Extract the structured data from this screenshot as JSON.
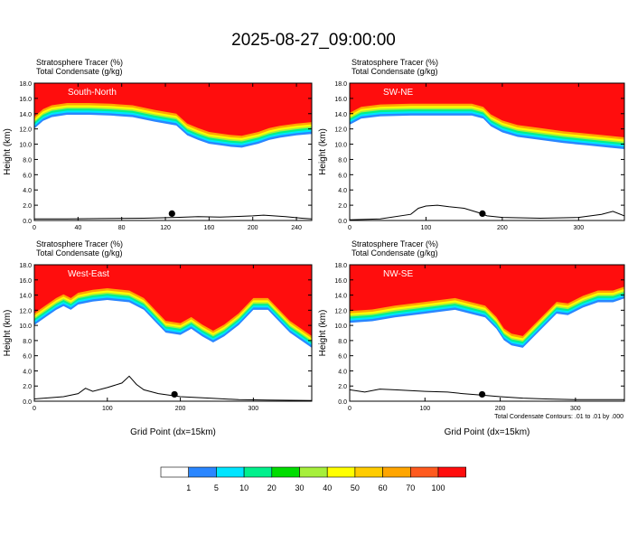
{
  "title": "2025-08-27_09:00:00",
  "colorbar": {
    "colors": [
      "#ffffff",
      "#2a86ff",
      "#00e5ff",
      "#00f08c",
      "#00dd00",
      "#a6ef3b",
      "#ffff00",
      "#ffcc00",
      "#ffa500",
      "#ff5a1e",
      "#ff0d0d"
    ],
    "labels": [
      "1",
      "5",
      "10",
      "20",
      "30",
      "40",
      "50",
      "60",
      "70",
      "100"
    ]
  },
  "panels": [
    {
      "header": [
        "Stratosphere Tracer   (%)",
        "Total Condensate   (g/kg)"
      ],
      "label": "South-North",
      "ylabel": "Height (km)",
      "xlabel": "",
      "yticks": [
        "0.0",
        "2.0",
        "4.0",
        "6.0",
        "8.0",
        "10.0",
        "12.0",
        "14.0",
        "16.0",
        "18.0"
      ],
      "xticks": [
        0,
        40,
        80,
        120,
        160,
        200,
        240
      ],
      "xmax": 254,
      "marker_x": 126,
      "tropopause": [
        [
          0,
          12.5
        ],
        [
          8,
          13.5
        ],
        [
          16,
          14.0
        ],
        [
          30,
          14.3
        ],
        [
          50,
          14.3
        ],
        [
          70,
          14.2
        ],
        [
          90,
          14.0
        ],
        [
          110,
          13.4
        ],
        [
          130,
          12.9
        ],
        [
          140,
          11.6
        ],
        [
          150,
          11.0
        ],
        [
          160,
          10.5
        ],
        [
          170,
          10.3
        ],
        [
          180,
          10.1
        ],
        [
          190,
          10.0
        ],
        [
          205,
          10.5
        ],
        [
          215,
          11.0
        ],
        [
          225,
          11.3
        ],
        [
          240,
          11.6
        ],
        [
          254,
          11.8
        ]
      ],
      "terrain": [
        [
          0,
          0.2
        ],
        [
          30,
          0.2
        ],
        [
          60,
          0.25
        ],
        [
          100,
          0.3
        ],
        [
          130,
          0.4
        ],
        [
          150,
          0.5
        ],
        [
          170,
          0.45
        ],
        [
          190,
          0.55
        ],
        [
          200,
          0.6
        ],
        [
          210,
          0.7
        ],
        [
          230,
          0.5
        ],
        [
          245,
          0.3
        ],
        [
          254,
          0.2
        ]
      ]
    },
    {
      "header": [
        "Stratosphere Tracer   (%)",
        "Total Condensate   (g/kg)"
      ],
      "label": "SW-NE",
      "ylabel": "Height (km)",
      "xlabel": "",
      "yticks": [
        "0.0",
        "2.0",
        "4.0",
        "6.0",
        "8.0",
        "10.0",
        "12.0",
        "14.0",
        "16.0",
        "18.0"
      ],
      "xticks": [
        0,
        100,
        200,
        300
      ],
      "xmax": 360,
      "marker_x": 174,
      "tropopause": [
        [
          0,
          13.0
        ],
        [
          15,
          13.8
        ],
        [
          40,
          14.1
        ],
        [
          80,
          14.2
        ],
        [
          120,
          14.2
        ],
        [
          160,
          14.2
        ],
        [
          175,
          13.8
        ],
        [
          185,
          12.8
        ],
        [
          200,
          12.0
        ],
        [
          220,
          11.4
        ],
        [
          250,
          11.0
        ],
        [
          280,
          10.6
        ],
        [
          310,
          10.3
        ],
        [
          340,
          10.0
        ],
        [
          360,
          9.8
        ]
      ],
      "terrain": [
        [
          0,
          0.1
        ],
        [
          40,
          0.2
        ],
        [
          80,
          0.8
        ],
        [
          90,
          1.6
        ],
        [
          100,
          1.9
        ],
        [
          115,
          2.0
        ],
        [
          130,
          1.8
        ],
        [
          150,
          1.6
        ],
        [
          170,
          1.0
        ],
        [
          180,
          0.6
        ],
        [
          200,
          0.4
        ],
        [
          250,
          0.3
        ],
        [
          300,
          0.4
        ],
        [
          330,
          0.8
        ],
        [
          345,
          1.2
        ],
        [
          360,
          0.6
        ]
      ]
    },
    {
      "header": [
        "Stratosphere Tracer   (%)",
        "Total Condensate   (g/kg)"
      ],
      "label": "West-East",
      "ylabel": "Height (km)",
      "xlabel": "Grid Point (dx=15km)",
      "yticks": [
        "0.0",
        "2.0",
        "4.0",
        "6.0",
        "8.0",
        "10.0",
        "12.0",
        "14.0",
        "16.0",
        "18.0"
      ],
      "xticks": [
        0,
        100,
        200,
        300
      ],
      "xmax": 380,
      "marker_x": 192,
      "tropopause": [
        [
          0,
          10.5
        ],
        [
          15,
          11.5
        ],
        [
          30,
          12.5
        ],
        [
          40,
          13.0
        ],
        [
          50,
          12.5
        ],
        [
          60,
          13.2
        ],
        [
          80,
          13.6
        ],
        [
          100,
          13.8
        ],
        [
          130,
          13.5
        ],
        [
          150,
          12.5
        ],
        [
          170,
          10.5
        ],
        [
          180,
          9.5
        ],
        [
          200,
          9.2
        ],
        [
          215,
          10.0
        ],
        [
          230,
          9.0
        ],
        [
          245,
          8.2
        ],
        [
          260,
          9.0
        ],
        [
          280,
          10.5
        ],
        [
          300,
          12.5
        ],
        [
          320,
          12.5
        ],
        [
          335,
          11.0
        ],
        [
          350,
          9.5
        ],
        [
          365,
          8.5
        ],
        [
          380,
          7.5
        ]
      ],
      "terrain": [
        [
          0,
          0.3
        ],
        [
          40,
          0.6
        ],
        [
          60,
          1.0
        ],
        [
          70,
          1.7
        ],
        [
          80,
          1.3
        ],
        [
          100,
          1.8
        ],
        [
          120,
          2.4
        ],
        [
          130,
          3.3
        ],
        [
          140,
          2.2
        ],
        [
          150,
          1.5
        ],
        [
          170,
          1.0
        ],
        [
          200,
          0.6
        ],
        [
          240,
          0.4
        ],
        [
          280,
          0.2
        ],
        [
          320,
          0.15
        ],
        [
          380,
          0.1
        ]
      ]
    },
    {
      "header": [
        "Stratosphere Tracer   (%)",
        "Total Condensate   (g/kg)"
      ],
      "label": "NW-SE",
      "ylabel": "Height (km)",
      "xlabel": "Grid Point (dx=15km)",
      "yticks": [
        "0.0",
        "2.0",
        "4.0",
        "6.0",
        "8.0",
        "10.0",
        "12.0",
        "14.0",
        "16.0",
        "18.0"
      ],
      "xticks": [
        0,
        100,
        200,
        300
      ],
      "xmax": 365,
      "marker_x": 176,
      "tropopause": [
        [
          0,
          10.8
        ],
        [
          30,
          11.0
        ],
        [
          60,
          11.5
        ],
        [
          100,
          12.0
        ],
        [
          140,
          12.5
        ],
        [
          160,
          12.0
        ],
        [
          180,
          11.5
        ],
        [
          195,
          10.0
        ],
        [
          205,
          8.5
        ],
        [
          215,
          7.8
        ],
        [
          230,
          7.5
        ],
        [
          245,
          9.0
        ],
        [
          260,
          10.5
        ],
        [
          275,
          12.0
        ],
        [
          290,
          11.8
        ],
        [
          310,
          12.8
        ],
        [
          330,
          13.5
        ],
        [
          350,
          13.5
        ],
        [
          365,
          14.0
        ]
      ],
      "terrain": [
        [
          0,
          1.5
        ],
        [
          20,
          1.2
        ],
        [
          40,
          1.6
        ],
        [
          60,
          1.5
        ],
        [
          80,
          1.4
        ],
        [
          100,
          1.3
        ],
        [
          130,
          1.2
        ],
        [
          150,
          1.0
        ],
        [
          175,
          0.8
        ],
        [
          200,
          0.6
        ],
        [
          230,
          0.4
        ],
        [
          260,
          0.3
        ],
        [
          300,
          0.2
        ],
        [
          365,
          0.2
        ]
      ]
    }
  ],
  "footnote": "Total Condensate Contours: .01 to .01 by .000",
  "chart_data": [
    {
      "type": "area",
      "title": "2025-08-27_09:00:00",
      "label": "South-North",
      "ylabel": "Height (km)",
      "ylim": [
        0,
        18
      ],
      "xlim": [
        0,
        254
      ]
    },
    {
      "type": "area",
      "label": "SW-NE",
      "ylabel": "Height (km)",
      "ylim": [
        0,
        18
      ],
      "xlim": [
        0,
        360
      ]
    },
    {
      "type": "area",
      "label": "West-East",
      "xlabel": "Grid Point (dx=15km)",
      "ylabel": "Height (km)",
      "ylim": [
        0,
        18
      ],
      "xlim": [
        0,
        380
      ]
    },
    {
      "type": "area",
      "label": "NW-SE",
      "xlabel": "Grid Point (dx=15km)",
      "ylabel": "Height (km)",
      "ylim": [
        0,
        18
      ],
      "xlim": [
        0,
        365
      ]
    }
  ]
}
